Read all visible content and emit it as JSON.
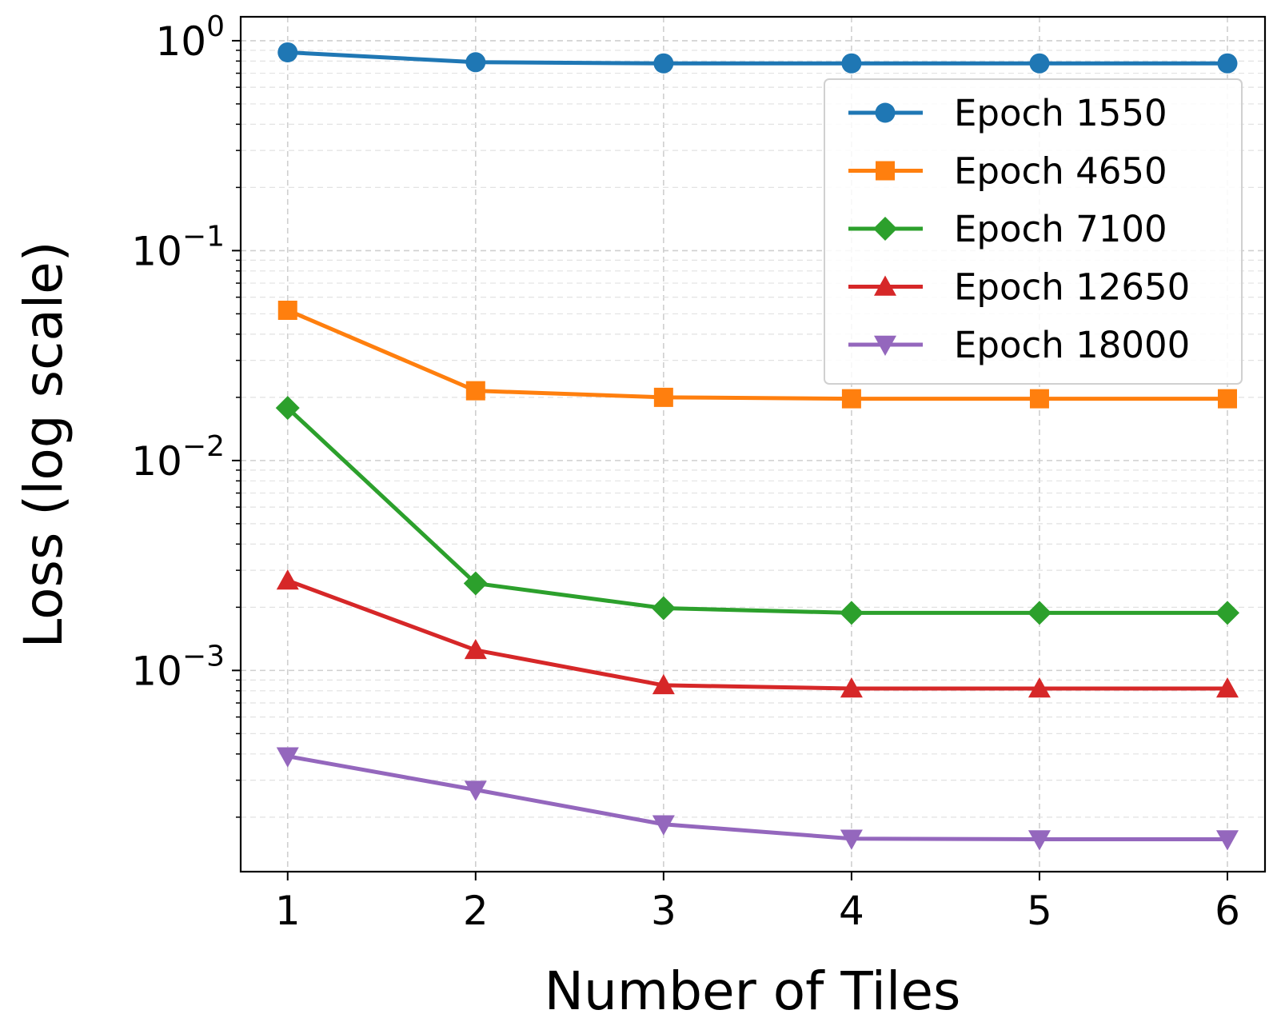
{
  "chart_data": {
    "type": "line",
    "xlabel": "Number of Tiles",
    "ylabel": "Loss (log scale)",
    "yscale": "log",
    "ylim": [
      0.00011,
      1.3
    ],
    "xlim": [
      0.75,
      6.2
    ],
    "grid": true,
    "legend_position": "top-right",
    "x": [
      1,
      2,
      3,
      4,
      5,
      6
    ],
    "x_tick_labels": [
      "1",
      "2",
      "3",
      "4",
      "5",
      "6"
    ],
    "y_ticks": [
      {
        "value": 1,
        "base": "10",
        "exp": "0"
      },
      {
        "value": 0.1,
        "base": "10",
        "exp": "−1"
      },
      {
        "value": 0.01,
        "base": "10",
        "exp": "−2"
      },
      {
        "value": 0.001,
        "base": "10",
        "exp": "−3"
      }
    ],
    "series": [
      {
        "name": "Epoch 1550",
        "color": "#1f77b4",
        "marker": "circle",
        "values": [
          0.88,
          0.79,
          0.78,
          0.78,
          0.78,
          0.78
        ]
      },
      {
        "name": "Epoch 4650",
        "color": "#ff7f0e",
        "marker": "square",
        "values": [
          0.052,
          0.0215,
          0.02,
          0.0197,
          0.0197,
          0.0197
        ]
      },
      {
        "name": "Epoch 7100",
        "color": "#2ca02c",
        "marker": "diamond",
        "values": [
          0.0178,
          0.0026,
          0.00198,
          0.00188,
          0.00188,
          0.00188
        ]
      },
      {
        "name": "Epoch 12650",
        "color": "#d62728",
        "marker": "triangle-up",
        "values": [
          0.00268,
          0.00125,
          0.00085,
          0.00082,
          0.00082,
          0.00082
        ]
      },
      {
        "name": "Epoch 18000",
        "color": "#9467bd",
        "marker": "triangle-down",
        "values": [
          0.00039,
          0.00027,
          0.000185,
          0.000158,
          0.000157,
          0.000157
        ]
      }
    ]
  }
}
